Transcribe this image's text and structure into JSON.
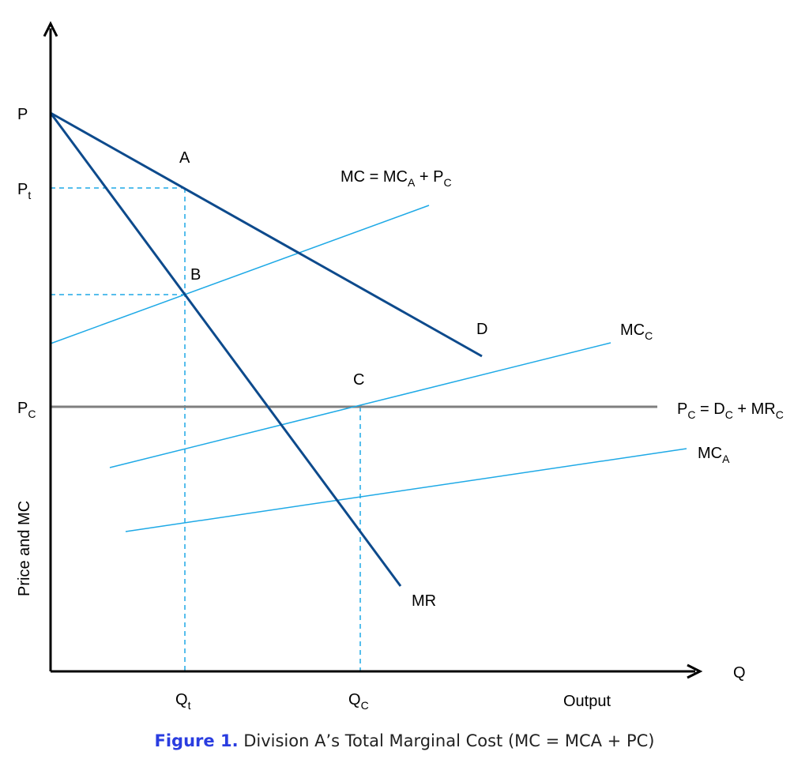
{
  "colors": {
    "axis": "#000000",
    "dark_line": "#0d4a8c",
    "light_line": "#1ea9e6",
    "pc_line": "#7f7f7f",
    "caption_accent": "#2a3de0"
  },
  "labels": {
    "p": "P",
    "pt_main": "P",
    "pt_sub": "t",
    "pc_main": "P",
    "pc_sub": "C",
    "price_and_mc": "Price and MC",
    "q": "Q",
    "qt_main": "Q",
    "qt_sub": "t",
    "qc_main": "Q",
    "qc_sub": "C",
    "output": "Output",
    "point_a": "A",
    "point_b": "B",
    "point_c": "C",
    "d": "D",
    "mr": "MR",
    "mc_total_a": "MC = MC",
    "mc_total_sub1": "A",
    "mc_total_b": " + P",
    "mc_total_sub2": "C",
    "mcc_main": "MC",
    "mcc_sub": "C",
    "pc_eq_a": "P",
    "pc_eq_sub1": "C",
    "pc_eq_b": " = D",
    "pc_eq_sub2": "C",
    "pc_eq_c": " + MR",
    "pc_eq_sub3": "C",
    "mca_main": "MC",
    "mca_sub": "A"
  },
  "caption": {
    "figure": "Figure 1.",
    "text": " Division A’s Total Marginal Cost (MC = MCA + PC)"
  }
}
